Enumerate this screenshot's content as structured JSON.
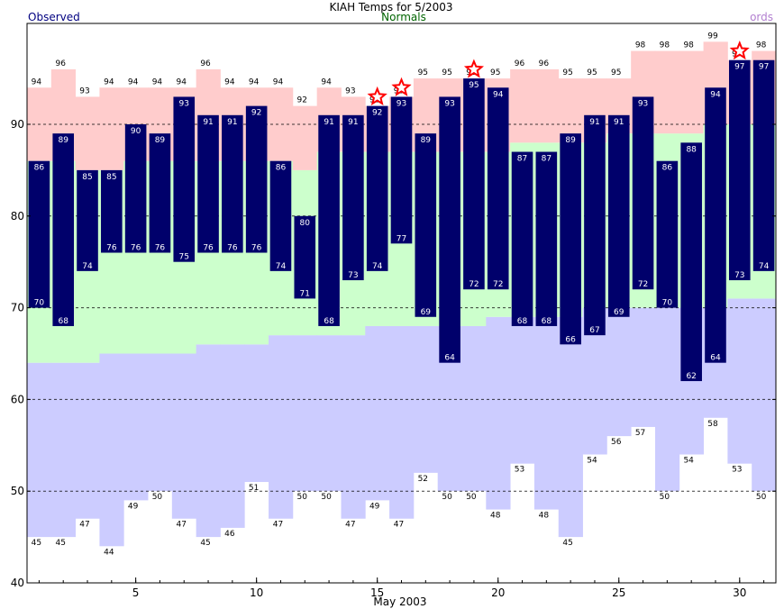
{
  "chart_data": {
    "type": "bar",
    "title": "KIAH Temps for 5/2003",
    "xlabel": "May 2003",
    "ylabel": "",
    "legend": [
      "Observed",
      "Normals",
      "Records"
    ],
    "legend_visible_text": "ords",
    "xlim": [
      0.5,
      31.5
    ],
    "ylim": [
      40,
      101
    ],
    "y_ticks": [
      40,
      50,
      60,
      70,
      80,
      90
    ],
    "x_ticks": [
      5,
      10,
      15,
      20,
      25,
      30
    ],
    "grid": "dashed horizontal at 50, 60, 70, 80, 90",
    "colors": {
      "observed": "#00006b",
      "normal_band": "#ccffcc",
      "record_high_band": "#ffcccc",
      "record_low_band": "#ccccff",
      "record_star": "#ff0000",
      "legend_observed": "#000080",
      "legend_normals": "#006400",
      "legend_records": "#b27fd0"
    },
    "days": [
      1,
      2,
      3,
      4,
      5,
      6,
      7,
      8,
      9,
      10,
      11,
      12,
      13,
      14,
      15,
      16,
      17,
      18,
      19,
      20,
      21,
      22,
      23,
      24,
      25,
      26,
      27,
      28,
      29,
      30,
      31
    ],
    "observed_high": [
      86,
      89,
      85,
      85,
      90,
      89,
      93,
      91,
      91,
      92,
      86,
      80,
      91,
      91,
      92,
      93,
      89,
      93,
      95,
      94,
      87,
      87,
      89,
      91,
      91,
      93,
      86,
      88,
      94,
      97,
      97
    ],
    "observed_low": [
      70,
      68,
      74,
      76,
      76,
      76,
      75,
      76,
      76,
      76,
      74,
      71,
      68,
      73,
      74,
      77,
      69,
      64,
      72,
      72,
      68,
      68,
      66,
      67,
      69,
      72,
      70,
      62,
      64,
      73,
      74
    ],
    "normal_high": [
      86,
      86,
      85,
      85,
      86,
      86,
      86,
      86,
      86,
      86,
      86,
      85,
      87,
      87,
      87,
      87,
      87,
      87,
      87,
      87,
      88,
      88,
      88,
      88,
      89,
      89,
      89,
      89,
      90,
      90,
      90
    ],
    "normal_low": [
      64,
      64,
      64,
      65,
      65,
      65,
      65,
      66,
      66,
      66,
      67,
      67,
      67,
      67,
      68,
      68,
      68,
      68,
      68,
      69,
      69,
      69,
      69,
      70,
      70,
      70,
      70,
      70,
      70,
      71,
      71
    ],
    "record_high": [
      94,
      96,
      93,
      94,
      94,
      94,
      94,
      96,
      94,
      94,
      94,
      92,
      94,
      93,
      92,
      93,
      95,
      95,
      95,
      95,
      96,
      96,
      95,
      95,
      95,
      98,
      98,
      98,
      99,
      97,
      98
    ],
    "record_low": [
      45,
      45,
      47,
      44,
      49,
      50,
      47,
      45,
      46,
      51,
      47,
      50,
      50,
      47,
      49,
      47,
      52,
      50,
      50,
      48,
      53,
      48,
      45,
      54,
      56,
      57,
      50,
      54,
      58,
      53,
      50
    ],
    "record_set_days": [
      15,
      16,
      19,
      30
    ]
  }
}
